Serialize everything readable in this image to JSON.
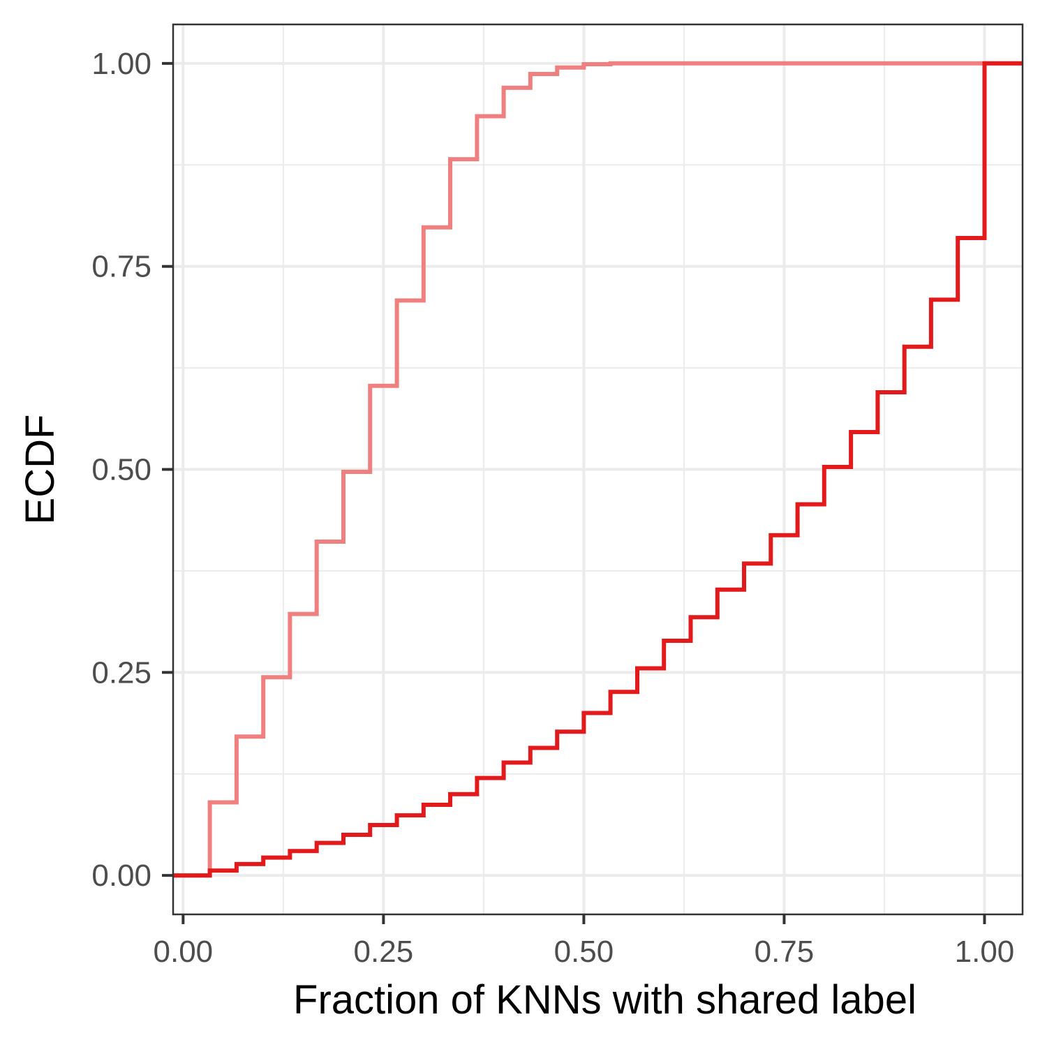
{
  "chart_data": {
    "type": "line",
    "step": true,
    "xlabel": "Fraction of KNNs with shared label",
    "ylabel": "ECDF",
    "xlim": [
      -0.0125,
      1.0475
    ],
    "ylim": [
      -0.048,
      1.048
    ],
    "x_ticks": [
      0,
      0.25,
      0.5,
      0.75,
      1
    ],
    "x_tick_labels": [
      "0.00",
      "0.25",
      "0.50",
      "0.75",
      "1.00"
    ],
    "y_ticks": [
      0,
      0.25,
      0.5,
      0.75,
      1
    ],
    "y_tick_labels": [
      "0.00",
      "0.25",
      "0.50",
      "0.75",
      "1.00"
    ],
    "grid": true,
    "series": [
      {
        "color": "#f08080",
        "x": [
          -0.0125,
          0.0333,
          0.0667,
          0.1,
          0.1333,
          0.1667,
          0.2,
          0.2333,
          0.2667,
          0.3,
          0.3333,
          0.3667,
          0.4,
          0.4333,
          0.4667,
          0.5,
          0.5333,
          0.5667,
          1.0475
        ],
        "y": [
          0,
          0.09,
          0.171,
          0.244,
          0.322,
          0.411,
          0.497,
          0.603,
          0.708,
          0.798,
          0.882,
          0.935,
          0.97,
          0.987,
          0.995,
          0.999,
          1.0,
          1.0,
          1.0
        ]
      },
      {
        "color": "#e31a1c",
        "x": [
          -0.0125,
          0.0333,
          0.0667,
          0.1,
          0.1333,
          0.1667,
          0.2,
          0.2333,
          0.2667,
          0.3,
          0.3333,
          0.3667,
          0.4,
          0.4333,
          0.4667,
          0.5,
          0.5333,
          0.5667,
          0.6,
          0.6333,
          0.6667,
          0.7,
          0.7333,
          0.7667,
          0.8,
          0.8333,
          0.8667,
          0.9,
          0.9333,
          0.9667,
          1.0,
          1.0475
        ],
        "y": [
          0,
          0.006,
          0.014,
          0.022,
          0.03,
          0.04,
          0.05,
          0.062,
          0.074,
          0.087,
          0.1,
          0.12,
          0.139,
          0.157,
          0.177,
          0.2,
          0.226,
          0.255,
          0.289,
          0.318,
          0.352,
          0.384,
          0.419,
          0.457,
          0.503,
          0.546,
          0.595,
          0.651,
          0.709,
          0.785,
          1.0,
          1.0
        ]
      }
    ]
  }
}
